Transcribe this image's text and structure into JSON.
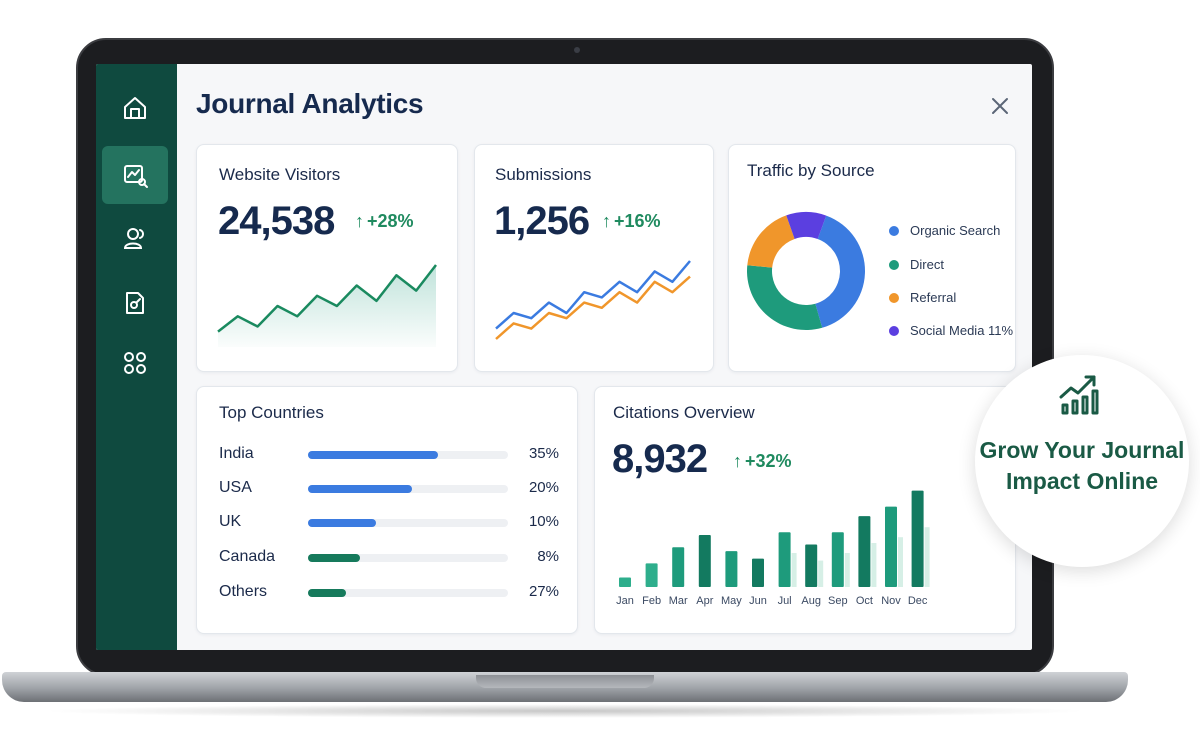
{
  "app": {
    "title": "Journal Analytics"
  },
  "colors": {
    "sidebar": "#0f4a3f",
    "accent_green": "#1f8a5f",
    "blue": "#3b7be0",
    "orange": "#f0962b",
    "purple": "#5b3fe0",
    "teal": "#1e9b7c"
  },
  "sidebar": {
    "items": [
      {
        "icon": "home-icon",
        "active": false
      },
      {
        "icon": "analytics-icon",
        "active": true
      },
      {
        "icon": "users-icon",
        "active": false
      },
      {
        "icon": "document-icon",
        "active": false
      },
      {
        "icon": "grid-icon",
        "active": false
      }
    ]
  },
  "visitors": {
    "title": "Website Visitors",
    "value": "24,538",
    "delta": "+28%"
  },
  "submissions": {
    "title": "Submissions",
    "value": "1,256",
    "delta": "+16%"
  },
  "traffic": {
    "title": "Traffic by Source",
    "legend": [
      {
        "label": "Organic Search",
        "color": "#3b7be0"
      },
      {
        "label": "Direct",
        "color": "#1e9b7c"
      },
      {
        "label": "Referral",
        "color": "#f0962b"
      },
      {
        "label": "Social Media 11%",
        "color": "#5b3fe0"
      }
    ]
  },
  "countries": {
    "title": "Top Countries",
    "rows": [
      {
        "name": "India",
        "pct": "35%",
        "fill": 0.65,
        "color": "#3b7be0"
      },
      {
        "name": "USA",
        "pct": "20%",
        "fill": 0.52,
        "color": "#3b7be0"
      },
      {
        "name": "UK",
        "pct": "10%",
        "fill": 0.34,
        "color": "#3b7be0"
      },
      {
        "name": "Canada",
        "pct": "8%",
        "fill": 0.26,
        "color": "#167a5c"
      },
      {
        "name": "Others",
        "pct": "27%",
        "fill": 0.19,
        "color": "#167a5c"
      }
    ]
  },
  "citations": {
    "title": "Citations Overview",
    "value": "8,932",
    "delta": "+32%"
  },
  "promo": {
    "text": "Grow Your Journal Impact Online"
  },
  "chart_data": [
    {
      "type": "area",
      "series": [
        {
          "values": [
            3,
            6,
            4,
            8,
            6,
            10,
            8,
            12,
            9,
            14,
            11,
            16
          ]
        }
      ]
    },
    {
      "type": "line",
      "series": [
        {
          "values": [
            3,
            6,
            5,
            8,
            6,
            10,
            9,
            12,
            10,
            14,
            12,
            16
          ]
        },
        {
          "values": [
            1,
            4,
            3,
            6,
            5,
            8,
            7,
            10,
            8,
            12,
            10,
            13
          ]
        }
      ]
    },
    {
      "type": "pie",
      "values": [
        40,
        31,
        18,
        11
      ],
      "legend": [
        "Organic Search",
        "Direct",
        "Referral",
        "Social Media 11%"
      ],
      "colors": [
        "#3b7be0",
        "#1e9b7c",
        "#f0962b",
        "#5b3fe0"
      ],
      "legend_position": "right"
    },
    {
      "type": "bar",
      "categories": [
        "Jan",
        "Feb",
        "Mar",
        "Apr",
        "May",
        "Jun",
        "Jul",
        "Aug",
        "Sep",
        "Oct",
        "Nov",
        "Dec"
      ],
      "values": [
        10,
        25,
        42,
        55,
        38,
        30,
        58,
        45,
        58,
        75,
        85,
        102
      ],
      "ylim": [
        0,
        110
      ]
    }
  ]
}
